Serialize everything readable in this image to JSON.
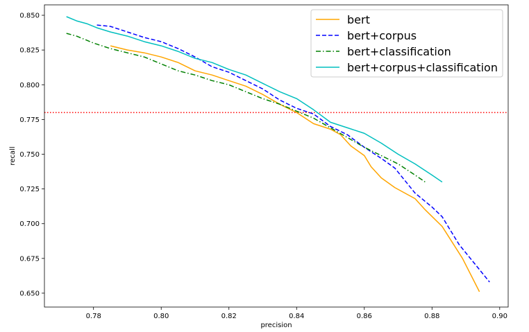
{
  "chart_data": {
    "type": "line",
    "xlabel": "precision",
    "ylabel": "recall",
    "xlim": [
      0.7655,
      0.9025
    ],
    "ylim": [
      0.64,
      0.8575
    ],
    "xticks": [
      "0.78",
      "0.80",
      "0.82",
      "0.84",
      "0.86",
      "0.88",
      "0.90"
    ],
    "xtick_values": [
      0.78,
      0.8,
      0.82,
      0.84,
      0.86,
      0.88,
      0.9
    ],
    "yticks": [
      "0.650",
      "0.675",
      "0.700",
      "0.725",
      "0.750",
      "0.775",
      "0.800",
      "0.825",
      "0.850"
    ],
    "ytick_values": [
      0.65,
      0.675,
      0.7,
      0.725,
      0.75,
      0.775,
      0.8,
      0.825,
      0.85
    ],
    "grid": false,
    "legend_position": "top-right",
    "reference_line": {
      "orientation": "horizontal",
      "y": 0.78,
      "color": "#ff0000",
      "style": "dotted"
    },
    "series": [
      {
        "name": "bert",
        "color": "#ffa500",
        "style": "solid",
        "x": [
          0.785,
          0.79,
          0.795,
          0.8,
          0.805,
          0.81,
          0.815,
          0.82,
          0.825,
          0.83,
          0.835,
          0.84,
          0.845,
          0.85,
          0.853,
          0.856,
          0.86,
          0.862,
          0.865,
          0.869,
          0.875,
          0.878,
          0.883,
          0.889,
          0.894
        ],
        "y": [
          0.828,
          0.825,
          0.823,
          0.82,
          0.816,
          0.81,
          0.807,
          0.803,
          0.799,
          0.793,
          0.786,
          0.78,
          0.772,
          0.768,
          0.764,
          0.756,
          0.749,
          0.741,
          0.733,
          0.726,
          0.718,
          0.71,
          0.698,
          0.675,
          0.651
        ]
      },
      {
        "name": "bert+corpus",
        "color": "#0000ff",
        "style": "dashed",
        "x": [
          0.781,
          0.785,
          0.79,
          0.795,
          0.8,
          0.805,
          0.81,
          0.815,
          0.82,
          0.825,
          0.83,
          0.835,
          0.84,
          0.845,
          0.85,
          0.855,
          0.86,
          0.865,
          0.869,
          0.875,
          0.88,
          0.883,
          0.888,
          0.897
        ],
        "y": [
          0.843,
          0.842,
          0.838,
          0.834,
          0.831,
          0.826,
          0.82,
          0.813,
          0.809,
          0.803,
          0.797,
          0.789,
          0.783,
          0.779,
          0.77,
          0.764,
          0.755,
          0.747,
          0.74,
          0.722,
          0.712,
          0.705,
          0.685,
          0.658
        ]
      },
      {
        "name": "bert+classification",
        "color": "#008000",
        "style": "dashdot",
        "x": [
          0.772,
          0.775,
          0.78,
          0.785,
          0.79,
          0.795,
          0.8,
          0.805,
          0.81,
          0.815,
          0.82,
          0.825,
          0.83,
          0.835,
          0.84,
          0.845,
          0.85,
          0.855,
          0.86,
          0.865,
          0.87,
          0.875,
          0.878
        ],
        "y": [
          0.837,
          0.835,
          0.83,
          0.826,
          0.823,
          0.82,
          0.815,
          0.81,
          0.807,
          0.803,
          0.8,
          0.795,
          0.79,
          0.786,
          0.781,
          0.776,
          0.769,
          0.762,
          0.755,
          0.749,
          0.743,
          0.735,
          0.73
        ]
      },
      {
        "name": "bert+corpus+classification",
        "color": "#00bfbf",
        "style": "solid",
        "x": [
          0.772,
          0.775,
          0.778,
          0.781,
          0.785,
          0.79,
          0.795,
          0.8,
          0.805,
          0.81,
          0.815,
          0.82,
          0.825,
          0.83,
          0.835,
          0.84,
          0.845,
          0.85,
          0.855,
          0.86,
          0.865,
          0.87,
          0.875,
          0.88,
          0.883
        ],
        "y": [
          0.849,
          0.846,
          0.844,
          0.841,
          0.838,
          0.835,
          0.831,
          0.828,
          0.824,
          0.819,
          0.816,
          0.811,
          0.807,
          0.801,
          0.795,
          0.79,
          0.782,
          0.773,
          0.769,
          0.765,
          0.758,
          0.75,
          0.743,
          0.735,
          0.73
        ]
      }
    ]
  }
}
